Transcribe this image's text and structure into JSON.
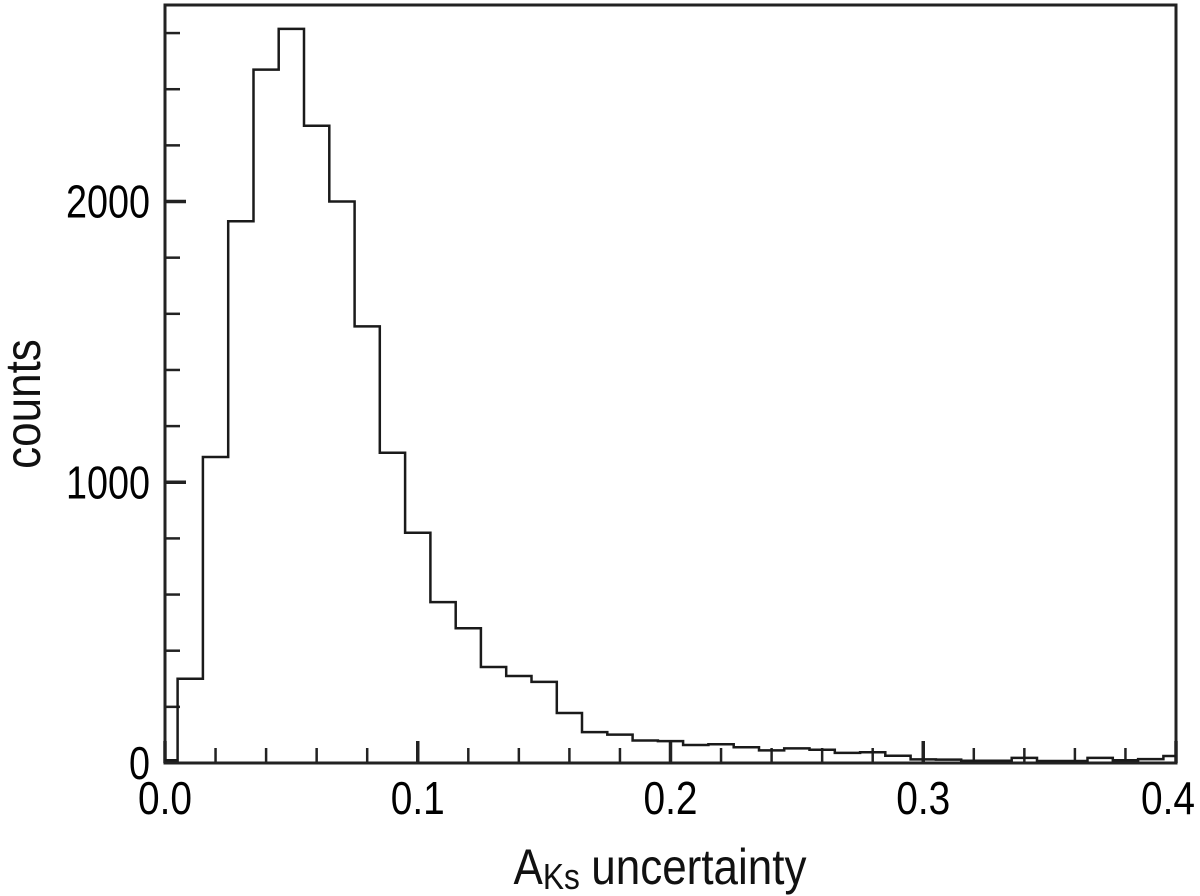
{
  "chart_data": {
    "type": "bar",
    "subtype": "step-histogram",
    "title": "",
    "xlabel": "A_Ks uncertainty",
    "xlabel_prefix": "A",
    "xlabel_subscript": "Ks",
    "xlabel_suffix": "uncertainty",
    "ylabel": "counts",
    "xlim": [
      0.0,
      0.4
    ],
    "ylim": [
      0,
      2700
    ],
    "grid": false,
    "legend_position": "none",
    "line_color": "#1a1a1a",
    "axis_color": "#222222",
    "background_color": "#ffffff",
    "bin_width": 0.01,
    "bin_centers": [
      0.0,
      0.01,
      0.02,
      0.03,
      0.04,
      0.05,
      0.06,
      0.07,
      0.08,
      0.09,
      0.1,
      0.11,
      0.12,
      0.13,
      0.14,
      0.15,
      0.16,
      0.17,
      0.18,
      0.19,
      0.2,
      0.21,
      0.22,
      0.23,
      0.24,
      0.25,
      0.26,
      0.27,
      0.28,
      0.29,
      0.3,
      0.31,
      0.32,
      0.33,
      0.34,
      0.35,
      0.36,
      0.37,
      0.38,
      0.39,
      0.4
    ],
    "values": [
      10,
      300,
      1090,
      1930,
      2470,
      2615,
      2270,
      2000,
      1555,
      1105,
      820,
      573,
      480,
      342,
      310,
      289,
      178,
      110,
      101,
      80,
      78,
      64,
      67,
      56,
      45,
      52,
      47,
      36,
      38,
      26,
      13,
      12,
      8,
      8,
      18,
      7,
      7,
      18,
      10,
      14,
      25
    ],
    "x_major_ticks": [
      0.0,
      0.1,
      0.2,
      0.3,
      0.4
    ],
    "x_major_tick_labels": [
      "0.0",
      "0.1",
      "0.2",
      "0.3",
      "0.4"
    ],
    "x_minor_tick_step": 0.02,
    "y_major_ticks": [
      0,
      1000,
      2000
    ],
    "y_major_tick_labels": [
      "0",
      "1000",
      "2000"
    ],
    "y_minor_tick_step": 200
  }
}
